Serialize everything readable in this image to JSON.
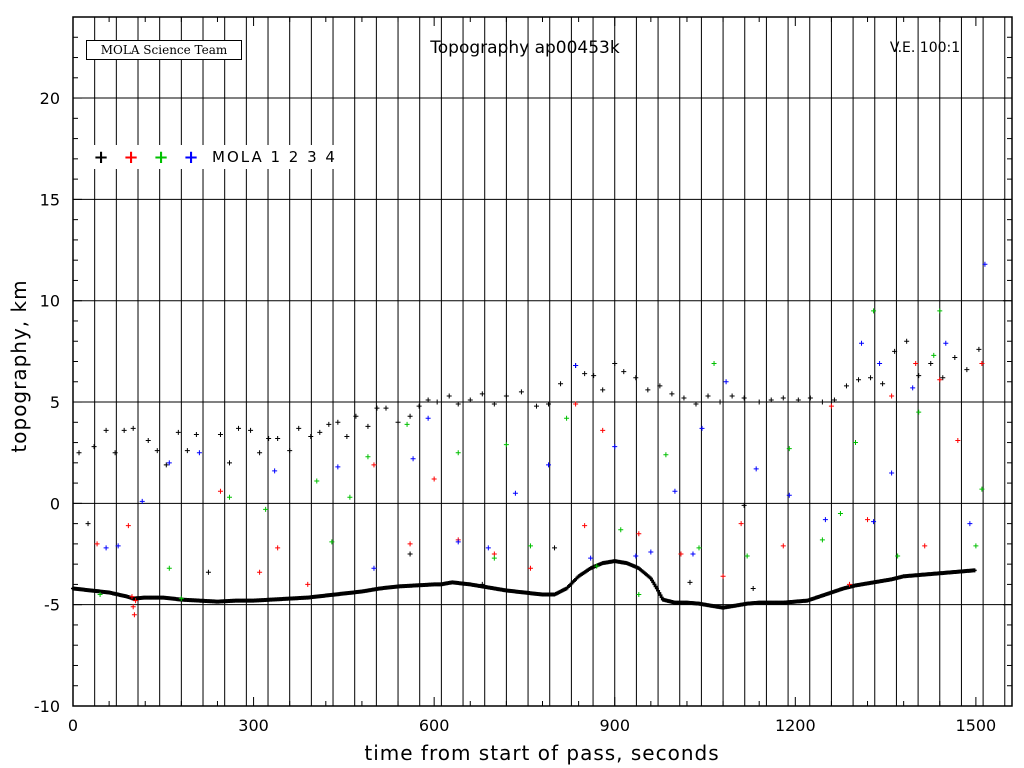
{
  "chart_data": {
    "type": "scatter",
    "title": "Topography ap00453k",
    "badge": "MOLA Science Team",
    "annotation": "V.E. 100:1",
    "xlabel": "time from start of pass, seconds",
    "ylabel": "topography, km",
    "xlim": [
      0,
      1560
    ],
    "ylim": [
      -10,
      24
    ],
    "x_ticks": [
      0,
      300,
      600,
      900,
      1200,
      1500
    ],
    "y_ticks": [
      -10,
      -5,
      0,
      5,
      10,
      15,
      20
    ],
    "grid": true,
    "legend": {
      "placement": "top-left",
      "label": "MOLA 1 2 3 4",
      "markers": [
        "+",
        "+",
        "+",
        "+"
      ]
    },
    "series": [
      {
        "label": "1",
        "color": "#000000",
        "note": "ground track (dense)",
        "x": [
          0,
          30,
          60,
          90,
          100,
          120,
          150,
          180,
          210,
          240,
          270,
          300,
          330,
          360,
          390,
          420,
          450,
          480,
          510,
          540,
          570,
          600,
          612,
          620,
          630,
          660,
          690,
          720,
          750,
          780,
          800,
          820,
          840,
          860,
          880,
          900,
          920,
          940,
          960,
          970,
          980,
          1000,
          1020,
          1040,
          1060,
          1080,
          1100,
          1120,
          1140,
          1160,
          1180,
          1200,
          1220,
          1240,
          1260,
          1280,
          1300,
          1320,
          1340,
          1360,
          1380,
          1400,
          1420,
          1440,
          1460,
          1480,
          1500
        ],
        "y": [
          -4.2,
          -4.3,
          -4.4,
          -4.6,
          -4.7,
          -4.65,
          -4.65,
          -4.75,
          -4.8,
          -4.85,
          -4.8,
          -4.8,
          -4.75,
          -4.7,
          -4.65,
          -4.55,
          -4.45,
          -4.35,
          -4.2,
          -4.1,
          -4.05,
          -4.0,
          -4.0,
          -3.95,
          -3.9,
          -4.0,
          -4.15,
          -4.3,
          -4.4,
          -4.5,
          -4.5,
          -4.2,
          -3.6,
          -3.2,
          -2.95,
          -2.85,
          -2.95,
          -3.2,
          -3.7,
          -4.2,
          -4.75,
          -4.9,
          -4.9,
          -4.95,
          -5.05,
          -5.15,
          -5.05,
          -4.95,
          -4.9,
          -4.9,
          -4.9,
          -4.85,
          -4.8,
          -4.6,
          -4.4,
          -4.2,
          -4.05,
          -3.95,
          -3.85,
          -3.75,
          -3.6,
          -3.55,
          -3.5,
          -3.45,
          -3.4,
          -3.35,
          -3.3
        ]
      },
      {
        "label": "1",
        "color": "#000000",
        "note": "scattered returns",
        "x": [
          10,
          25,
          35,
          55,
          70,
          85,
          100,
          125,
          140,
          155,
          175,
          190,
          205,
          225,
          245,
          260,
          275,
          295,
          310,
          325,
          340,
          360,
          375,
          395,
          410,
          425,
          440,
          455,
          470,
          490,
          505,
          520,
          540,
          560,
          575,
          590,
          605,
          625,
          640,
          660,
          680,
          700,
          720,
          745,
          770,
          790,
          810,
          835,
          850,
          865,
          880,
          900,
          915,
          935,
          955,
          975,
          995,
          1015,
          1035,
          1055,
          1075,
          1095,
          1115,
          1140,
          1160,
          1180,
          1205,
          1225,
          1245,
          1265,
          1285,
          1305,
          1325,
          1345,
          1365,
          1385,
          1405,
          1425,
          1445,
          1465,
          1485,
          1505,
          560,
          680,
          800,
          1025,
          1115,
          1130
        ],
        "y": [
          2.5,
          -1.0,
          2.8,
          3.6,
          2.5,
          3.6,
          3.7,
          3.1,
          2.6,
          1.9,
          3.5,
          2.6,
          3.4,
          -3.4,
          3.4,
          2.0,
          3.7,
          3.6,
          2.5,
          3.2,
          3.2,
          2.6,
          3.7,
          3.3,
          3.5,
          3.9,
          4.0,
          3.3,
          4.3,
          3.8,
          4.7,
          4.7,
          4.0,
          4.3,
          4.8,
          5.1,
          5.0,
          5.3,
          4.9,
          5.1,
          5.4,
          4.9,
          5.3,
          5.5,
          4.8,
          4.9,
          5.9,
          6.8,
          6.4,
          6.3,
          5.6,
          6.9,
          6.5,
          6.2,
          5.6,
          5.8,
          5.4,
          5.2,
          4.9,
          5.3,
          5.0,
          5.3,
          5.2,
          5.0,
          5.1,
          5.2,
          5.1,
          5.2,
          5.0,
          5.1,
          5.8,
          6.1,
          6.2,
          5.9,
          7.5,
          8.0,
          6.3,
          6.9,
          6.2,
          7.2,
          6.6,
          7.6,
          -2.5,
          -4.0,
          -2.2,
          -3.9,
          -0.1,
          -4.2
        ]
      },
      {
        "label": "2",
        "color": "#ff0000",
        "note": "",
        "x": [
          40,
          92,
          98,
          100,
          102,
          104,
          245,
          310,
          340,
          390,
          500,
          560,
          600,
          640,
          700,
          760,
          835,
          850,
          880,
          940,
          1010,
          1080,
          1110,
          1180,
          1260,
          1290,
          1320,
          1360,
          1400,
          1415,
          1440,
          1470,
          1510
        ],
        "y": [
          -2.0,
          -1.1,
          -4.6,
          -5.1,
          -5.5,
          -4.8,
          0.6,
          -3.4,
          -2.2,
          -4.0,
          1.9,
          -2.0,
          1.2,
          -1.8,
          -2.5,
          -3.2,
          4.9,
          -1.1,
          3.6,
          -1.5,
          -2.5,
          -3.6,
          -1.0,
          -2.1,
          4.8,
          -4.0,
          -0.8,
          5.3,
          6.9,
          -2.1,
          6.1,
          3.1,
          6.9
        ]
      },
      {
        "label": "3",
        "color": "#00c000",
        "note": "",
        "x": [
          45,
          160,
          180,
          260,
          320,
          405,
          430,
          460,
          490,
          555,
          640,
          700,
          720,
          760,
          820,
          870,
          910,
          940,
          985,
          1040,
          1065,
          1120,
          1190,
          1245,
          1275,
          1300,
          1330,
          1370,
          1405,
          1430,
          1440,
          1500,
          1510
        ],
        "y": [
          -4.5,
          -3.2,
          -4.7,
          0.3,
          -0.3,
          1.1,
          -1.9,
          0.3,
          2.3,
          3.9,
          2.5,
          -2.7,
          2.9,
          -2.1,
          4.2,
          -3.1,
          -1.3,
          -4.5,
          2.4,
          -2.2,
          6.9,
          -2.6,
          2.7,
          -1.8,
          -0.5,
          3.0,
          9.5,
          -2.6,
          4.5,
          7.3,
          9.5,
          -2.1,
          0.7
        ]
      },
      {
        "label": "4",
        "color": "#0000ff",
        "note": "",
        "x": [
          55,
          75,
          115,
          160,
          210,
          335,
          440,
          500,
          565,
          590,
          640,
          690,
          735,
          790,
          835,
          860,
          900,
          935,
          960,
          1000,
          1030,
          1045,
          1085,
          1135,
          1190,
          1250,
          1310,
          1330,
          1340,
          1360,
          1395,
          1450,
          1490,
          1515
        ],
        "y": [
          -2.2,
          -2.1,
          0.1,
          2.0,
          2.5,
          1.6,
          1.8,
          -3.2,
          2.2,
          4.2,
          -1.9,
          -2.2,
          0.5,
          1.9,
          6.8,
          -2.7,
          2.8,
          -2.6,
          -2.4,
          0.6,
          -2.5,
          3.7,
          6.0,
          1.7,
          0.4,
          -0.8,
          7.9,
          -0.9,
          6.9,
          1.5,
          5.7,
          7.9,
          -1.0,
          11.8
        ]
      }
    ]
  }
}
